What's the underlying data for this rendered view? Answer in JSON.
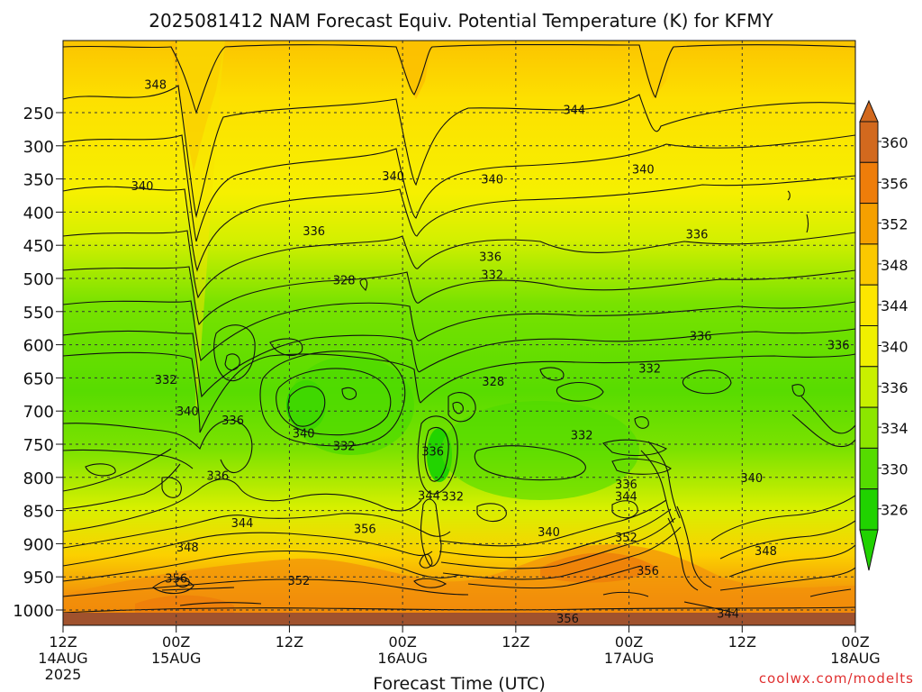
{
  "chart_data": {
    "type": "heatmap",
    "title": "2025081412 NAM Forecast Equiv. Potential Temperature (K) for KFMY",
    "xlabel": "Forecast Time (UTC)",
    "ylabel": "",
    "credit": "coolwx.com/modelts",
    "x_ticks": [
      {
        "h": 0,
        "line1": "12Z",
        "line2": "14AUG",
        "line3": "2025"
      },
      {
        "h": 12,
        "line1": "00Z",
        "line2": "15AUG",
        "line3": ""
      },
      {
        "h": 24,
        "line1": "12Z",
        "line2": "",
        "line3": ""
      },
      {
        "h": 36,
        "line1": "00Z",
        "line2": "16AUG",
        "line3": ""
      },
      {
        "h": 48,
        "line1": "12Z",
        "line2": "",
        "line3": ""
      },
      {
        "h": 60,
        "line1": "00Z",
        "line2": "17AUG",
        "line3": ""
      },
      {
        "h": 72,
        "line1": "12Z",
        "line2": "",
        "line3": ""
      },
      {
        "h": 84,
        "line1": "00Z",
        "line2": "18AUG",
        "line3": ""
      }
    ],
    "xlim": [
      0,
      84
    ],
    "y_ticks": [
      "250",
      "300",
      "350",
      "400",
      "450",
      "500",
      "550",
      "600",
      "650",
      "700",
      "750",
      "800",
      "850",
      "900",
      "950",
      "1000"
    ],
    "ylim_hpa": [
      1025,
      200
    ],
    "colorbar": {
      "labels": [
        "360",
        "356",
        "352",
        "348",
        "344",
        "340",
        "336",
        "334",
        "330",
        "326"
      ],
      "colors": [
        "#d2691e",
        "#ee7d0a",
        "#f5a000",
        "#fbc800",
        "#fde600",
        "#f0f000",
        "#c8f000",
        "#8ce600",
        "#55dc00",
        "#20d200"
      ]
    },
    "contour_labels": [
      {
        "h": 9.8,
        "p": 207,
        "text": "348"
      },
      {
        "h": 54.2,
        "p": 245,
        "text": "344"
      },
      {
        "h": 8.4,
        "p": 360,
        "text": "340"
      },
      {
        "h": 35.0,
        "p": 345,
        "text": "340"
      },
      {
        "h": 45.5,
        "p": 350,
        "text": "340"
      },
      {
        "h": 61.5,
        "p": 335,
        "text": "340"
      },
      {
        "h": 26.6,
        "p": 428,
        "text": "336"
      },
      {
        "h": 45.3,
        "p": 467,
        "text": "336"
      },
      {
        "h": 67.2,
        "p": 433,
        "text": "336"
      },
      {
        "h": 29.8,
        "p": 502,
        "text": "328"
      },
      {
        "h": 45.5,
        "p": 494,
        "text": "332"
      },
      {
        "h": 67.6,
        "p": 586,
        "text": "336"
      },
      {
        "h": 82.2,
        "p": 600,
        "text": "336"
      },
      {
        "h": 10.9,
        "p": 652,
        "text": "332"
      },
      {
        "h": 13.2,
        "p": 700,
        "text": "340"
      },
      {
        "h": 18.0,
        "p": 713,
        "text": "336"
      },
      {
        "h": 45.6,
        "p": 655,
        "text": "328"
      },
      {
        "h": 25.5,
        "p": 733,
        "text": "340"
      },
      {
        "h": 29.8,
        "p": 752,
        "text": "332"
      },
      {
        "h": 39.2,
        "p": 760,
        "text": "336"
      },
      {
        "h": 55.0,
        "p": 736,
        "text": "332"
      },
      {
        "h": 62.2,
        "p": 635,
        "text": "332"
      },
      {
        "h": 16.4,
        "p": 797,
        "text": "336"
      },
      {
        "h": 19.0,
        "p": 868,
        "text": "344"
      },
      {
        "h": 13.2,
        "p": 905,
        "text": "348"
      },
      {
        "h": 32.0,
        "p": 877,
        "text": "356"
      },
      {
        "h": 38.8,
        "p": 827,
        "text": "344"
      },
      {
        "h": 41.3,
        "p": 828,
        "text": "332"
      },
      {
        "h": 51.5,
        "p": 882,
        "text": "340"
      },
      {
        "h": 59.7,
        "p": 810,
        "text": "336"
      },
      {
        "h": 59.7,
        "p": 828,
        "text": "344"
      },
      {
        "h": 59.7,
        "p": 890,
        "text": "352"
      },
      {
        "h": 12.0,
        "p": 952,
        "text": "356"
      },
      {
        "h": 25.0,
        "p": 955,
        "text": "352"
      },
      {
        "h": 62.0,
        "p": 940,
        "text": "356"
      },
      {
        "h": 73.0,
        "p": 800,
        "text": "340"
      },
      {
        "h": 74.5,
        "p": 910,
        "text": "348"
      },
      {
        "h": 70.5,
        "p": 1005,
        "text": "344"
      },
      {
        "h": 53.5,
        "p": 1012,
        "text": "356"
      }
    ]
  }
}
